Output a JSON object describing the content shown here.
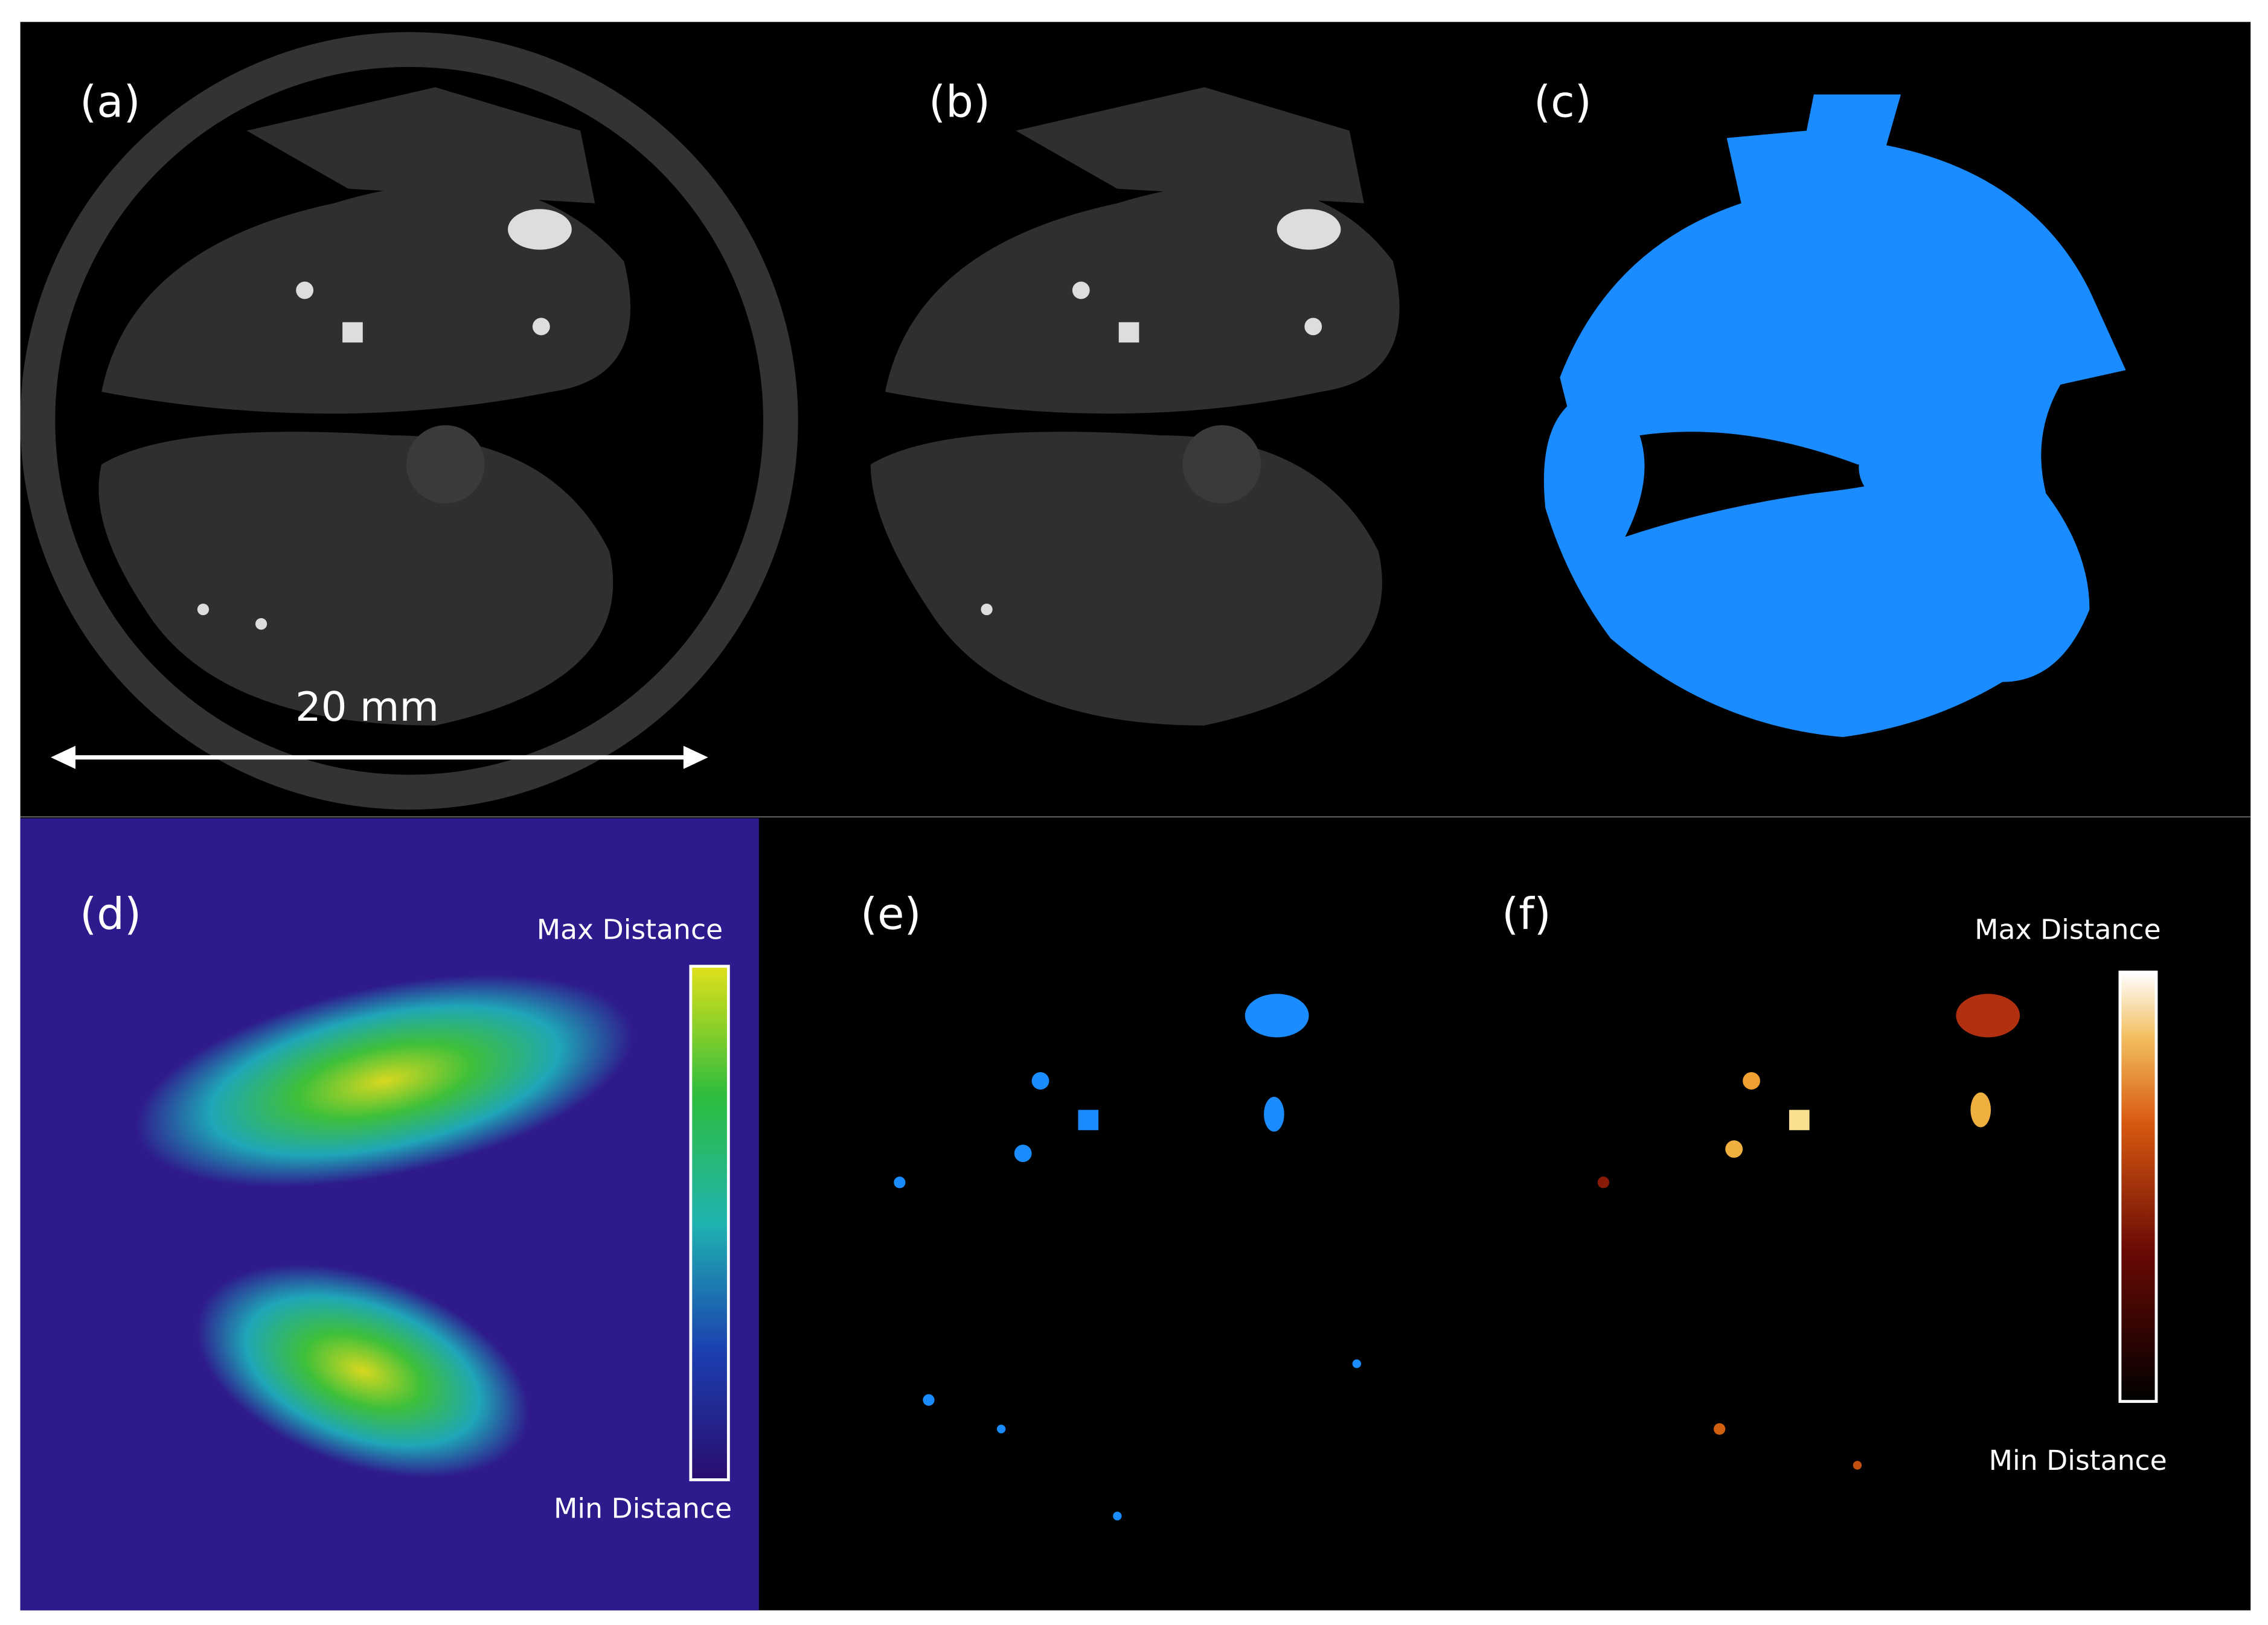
{
  "panels": [
    {
      "label": "(a)"
    },
    {
      "label": "(b)"
    },
    {
      "label": "(c)"
    },
    {
      "label": "(d)",
      "colorbar": {
        "max_label": "Max Distance",
        "min_label": "Min Distance"
      }
    },
    {
      "label": "(e)"
    },
    {
      "label": "(f)",
      "colorbar": {
        "max_label": "Max Distance",
        "min_label": "Min Distance"
      }
    }
  ],
  "scale_bar": {
    "label": "20 mm"
  }
}
